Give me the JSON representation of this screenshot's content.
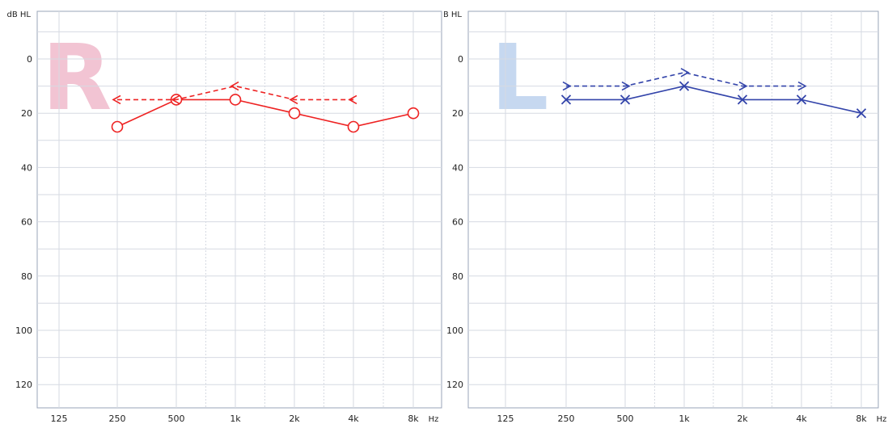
{
  "chart_data": [
    {
      "type": "line",
      "ear_label": "R",
      "ear_label_color": "#f2c4d3",
      "ylabel": "dB HL",
      "xlabel": "Hz",
      "ylim": [
        0,
        130
      ],
      "y_inverted": true,
      "yticks": [
        "0",
        "20",
        "40",
        "60",
        "80",
        "100",
        "120"
      ],
      "categories": [
        "125",
        "250",
        "500",
        "1k",
        "2k",
        "4k",
        "8k"
      ],
      "grid": true,
      "color": "#ee2222",
      "series": [
        {
          "marker": "circle",
          "linestyle": "solid",
          "x": [
            "250",
            "500",
            "1k",
            "2k",
            "4k",
            "8k"
          ],
          "values": [
            25,
            15,
            15,
            20,
            25,
            20
          ]
        },
        {
          "marker": "arrow-left",
          "linestyle": "dashed",
          "x": [
            "250",
            "500",
            "1k",
            "2k",
            "4k"
          ],
          "values": [
            15,
            15,
            10,
            15,
            15
          ]
        }
      ]
    },
    {
      "type": "line",
      "ear_label": "L",
      "ear_label_color": "#c6d8f0",
      "ylabel": "dB HL",
      "xlabel": "Hz",
      "ylim": [
        0,
        130
      ],
      "y_inverted": true,
      "yticks": [
        "0",
        "20",
        "40",
        "60",
        "80",
        "100",
        "120"
      ],
      "categories": [
        "125",
        "250",
        "500",
        "1k",
        "2k",
        "4k",
        "8k"
      ],
      "grid": true,
      "color": "#3344aa",
      "series": [
        {
          "marker": "cross",
          "linestyle": "solid",
          "x": [
            "250",
            "500",
            "1k",
            "2k",
            "4k",
            "8k"
          ],
          "values": [
            15,
            15,
            10,
            15,
            15,
            20
          ]
        },
        {
          "marker": "arrow-right",
          "linestyle": "dashed",
          "x": [
            "250",
            "500",
            "1k",
            "2k",
            "4k"
          ],
          "values": [
            10,
            10,
            5,
            10,
            10
          ]
        }
      ]
    }
  ]
}
